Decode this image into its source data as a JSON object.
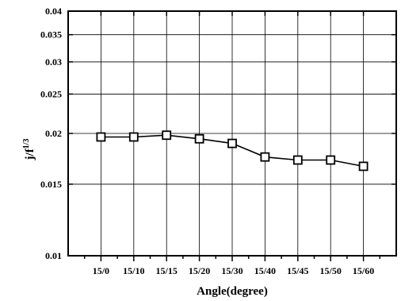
{
  "chart_data": {
    "type": "line",
    "categories": [
      "15/0",
      "15/10",
      "15/15",
      "15/20",
      "15/30",
      "15/40",
      "15/45",
      "15/50",
      "15/60"
    ],
    "series": [
      {
        "values": [
          0.0196,
          0.0196,
          0.0198,
          0.0194,
          0.0189,
          0.0175,
          0.0172,
          0.0172,
          0.0166
        ],
        "marker": "open-square",
        "color": "#000000"
      }
    ],
    "xlabel": "Angle(degree)",
    "ylabel": "j/f",
    "ylabel_superscript": "1/3",
    "yscale": "log",
    "ylim": [
      0.01,
      0.04
    ],
    "yticks": [
      0.01,
      0.015,
      0.02,
      0.025,
      0.03,
      0.035,
      0.04
    ],
    "ytick_labels": [
      "0.01",
      "0.015",
      "0.02",
      "0.025",
      "0.03",
      "0.035",
      "0.04"
    ],
    "grid": true,
    "legend": "none"
  }
}
